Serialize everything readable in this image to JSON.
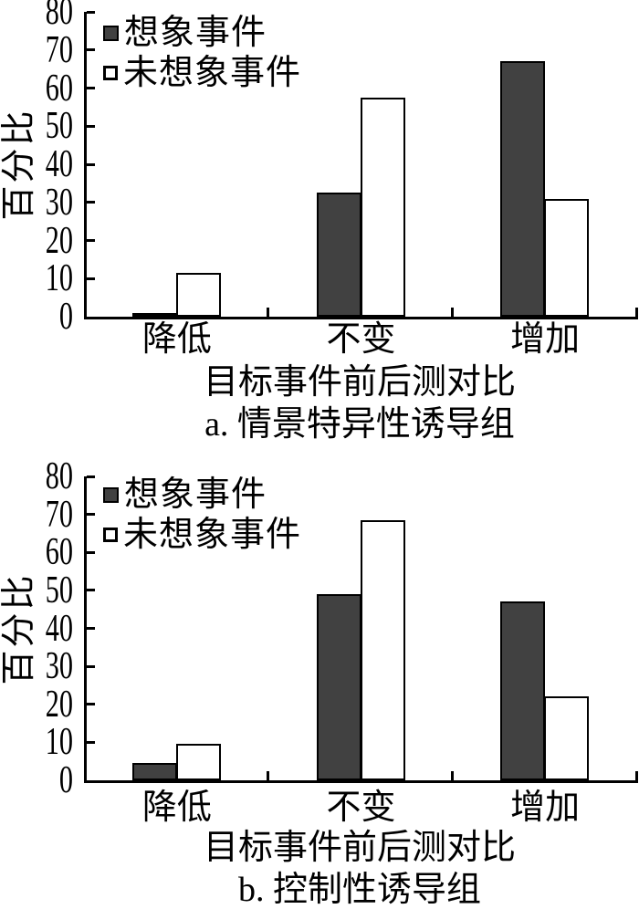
{
  "chart_data": [
    {
      "type": "bar",
      "caption": "a. 情景特异性诱导组",
      "xlabel": "目标事件前后测对比",
      "ylabel": "百分比",
      "categories": [
        "降低",
        "不变",
        "增加"
      ],
      "series": [
        {
          "name": "想象事件",
          "values": [
            1,
            32.5,
            67
          ],
          "fill": "#414141"
        },
        {
          "name": "未想象事件",
          "values": [
            11.5,
            57.5,
            31
          ],
          "fill": "#ffffff"
        }
      ],
      "ylim": [
        0,
        80
      ],
      "ytick_step": 10,
      "legend_position": "top-left",
      "grid": false,
      "axis_color": "#000000"
    },
    {
      "type": "bar",
      "caption": "b. 控制性诱导组",
      "xlabel": "目标事件前后测对比",
      "ylabel": "百分比",
      "categories": [
        "降低",
        "不变",
        "增加"
      ],
      "series": [
        {
          "name": "想象事件",
          "values": [
            4.5,
            49,
            47
          ],
          "fill": "#414141"
        },
        {
          "name": "未想象事件",
          "values": [
            9.5,
            68.5,
            22
          ],
          "fill": "#ffffff"
        }
      ],
      "ylim": [
        0,
        80
      ],
      "ytick_step": 10,
      "legend_position": "top-left",
      "grid": false,
      "axis_color": "#000000"
    }
  ]
}
